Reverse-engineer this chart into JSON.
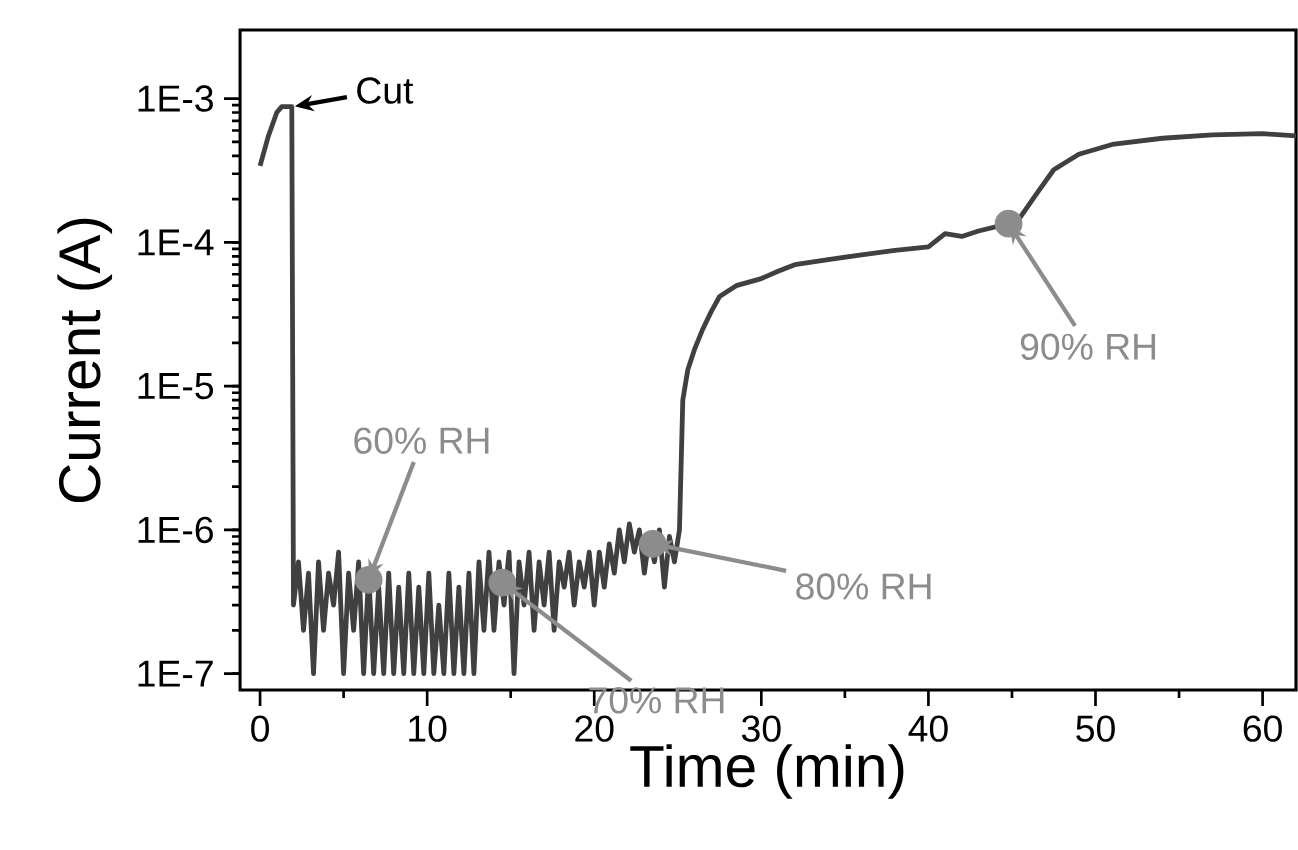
{
  "chart_data": {
    "type": "line",
    "xlabel": "Time (min)",
    "ylabel": "Current (A)",
    "log": "y",
    "xlim": [
      -1.2,
      62
    ],
    "ylim": [
      7.7e-08,
      0.003
    ],
    "xticks": [
      0,
      10,
      20,
      30,
      40,
      50,
      60
    ],
    "yticks": [
      {
        "value": 1e-07,
        "label": "1E-7"
      },
      {
        "value": 1e-06,
        "label": "1E-6"
      },
      {
        "value": 1e-05,
        "label": "1E-5"
      },
      {
        "value": 0.0001,
        "label": "1E-4"
      },
      {
        "value": 0.001,
        "label": "1E-3"
      }
    ],
    "grid": false,
    "line_style": "solid",
    "series": [
      {
        "color": "#404040",
        "x": [
          0,
          0.5,
          1.0,
          1.3,
          1.9,
          2.0,
          2.3,
          2.6,
          2.9,
          3.2,
          3.5,
          3.8,
          4.1,
          4.4,
          4.7,
          5.0,
          5.3,
          5.6,
          5.9,
          6.2,
          6.5,
          6.8,
          7.1,
          7.4,
          7.7,
          8.0,
          8.3,
          8.6,
          8.9,
          9.2,
          9.5,
          9.8,
          10.1,
          10.4,
          10.7,
          11.0,
          11.3,
          11.6,
          11.9,
          12.2,
          12.5,
          12.8,
          13.1,
          13.4,
          13.7,
          14.0,
          14.3,
          14.6,
          14.9,
          15.2,
          15.5,
          15.8,
          16.1,
          16.4,
          16.7,
          17.0,
          17.3,
          17.6,
          17.9,
          18.2,
          18.5,
          18.8,
          19.1,
          19.4,
          19.7,
          20.0,
          20.3,
          20.6,
          20.9,
          21.2,
          21.5,
          21.8,
          22.1,
          22.4,
          22.7,
          23.0,
          23.3,
          23.6,
          23.9,
          24.2,
          24.5,
          24.8,
          25.1,
          25.3,
          25.6,
          26,
          26.5,
          27,
          27.5,
          28.5,
          30,
          31,
          32,
          34,
          36,
          38,
          40,
          41,
          42,
          43,
          44.8,
          45.5,
          46.5,
          47.5,
          49,
          51,
          54,
          57,
          60,
          62
        ],
        "values": [
          0.00034,
          0.00055,
          0.0008,
          0.00088,
          0.00088,
          3e-07,
          6e-07,
          2e-07,
          5e-07,
          1e-07,
          6e-07,
          2e-07,
          5e-07,
          3e-07,
          7e-07,
          1e-07,
          5e-07,
          2e-07,
          6e-07,
          1e-07,
          5e-07,
          1e-07,
          4e-07,
          1e-07,
          5e-07,
          1e-07,
          4e-07,
          1e-07,
          5e-07,
          1e-07,
          4e-07,
          1e-07,
          5e-07,
          1e-07,
          3e-07,
          1e-07,
          5e-07,
          1e-07,
          4e-07,
          1e-07,
          5e-07,
          1e-07,
          6e-07,
          2e-07,
          7e-07,
          2e-07,
          6e-07,
          3e-07,
          7e-07,
          1e-07,
          6e-07,
          3e-07,
          7e-07,
          2e-07,
          6e-07,
          3e-07,
          7e-07,
          2e-07,
          6e-07,
          4e-07,
          7e-07,
          3e-07,
          6e-07,
          4e-07,
          7e-07,
          3e-07,
          7e-07,
          4e-07,
          8e-07,
          5e-07,
          1e-06,
          6e-07,
          1.1e-06,
          7e-07,
          1e-06,
          5e-07,
          9e-07,
          6e-07,
          1e-06,
          4e-07,
          9e-07,
          6e-07,
          1e-06,
          8e-06,
          1.3e-05,
          1.8e-05,
          2.5e-05,
          3.3e-05,
          4.2e-05,
          5e-05,
          5.6e-05,
          6.3e-05,
          7e-05,
          7.6e-05,
          8.2e-05,
          8.8e-05,
          9.3e-05,
          0.000115,
          0.00011,
          0.00012,
          0.000135,
          0.00015,
          0.00022,
          0.00032,
          0.00041,
          0.00048,
          0.00053,
          0.00056,
          0.00057,
          0.00055
        ]
      },
      {
        "type": "scatter",
        "color": "#8c8c8c",
        "x": [
          6.5,
          14.5,
          23.5,
          44.8
        ],
        "values": [
          4.5e-07,
          4.3e-07,
          8e-07,
          0.000135
        ]
      }
    ],
    "annotations": [
      {
        "text": "Cut",
        "x": 2,
        "y": 0.00088
      },
      {
        "text": "60% RH",
        "x": 6.5,
        "y": 4.5e-07
      },
      {
        "text": "70% RH",
        "x": 14.5,
        "y": 4.3e-07
      },
      {
        "text": "80% RH",
        "x": 23.5,
        "y": 8e-07
      },
      {
        "text": "90% RH",
        "x": 44.8,
        "y": 0.000135
      }
    ]
  }
}
